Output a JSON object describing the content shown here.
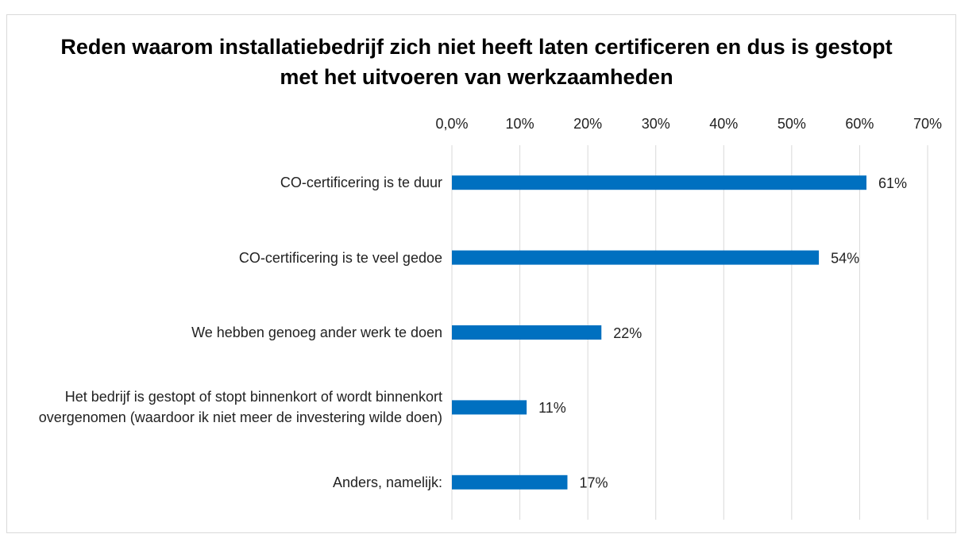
{
  "chart_data": {
    "type": "bar",
    "orientation": "horizontal",
    "title": "Reden waarom installatiebedrijf zich niet heeft laten certificeren en dus is gestopt met het uitvoeren van werkzaamheden",
    "categories": [
      "CO-certificering is te duur",
      "CO-certificering is te veel gedoe",
      "We hebben genoeg ander werk te doen",
      "Het bedrijf is gestopt of stopt binnenkort of wordt binnenkort overgenomen (waardoor ik niet meer de investering wilde doen)",
      "Anders, namelijk:"
    ],
    "values": [
      61,
      54,
      22,
      11,
      17
    ],
    "value_labels": [
      "61%",
      "54%",
      "22%",
      "11%",
      "17%"
    ],
    "color": "#0070c0",
    "xlim": [
      0,
      70
    ],
    "xticks": [
      {
        "value": 0,
        "label": "0,0%"
      },
      {
        "value": 10,
        "label": "10%"
      },
      {
        "value": 20,
        "label": "20%"
      },
      {
        "value": 30,
        "label": "30%"
      },
      {
        "value": 40,
        "label": "40%"
      },
      {
        "value": 50,
        "label": "50%"
      },
      {
        "value": 60,
        "label": "60%"
      },
      {
        "value": 70,
        "label": "70%"
      }
    ],
    "grid": true
  }
}
